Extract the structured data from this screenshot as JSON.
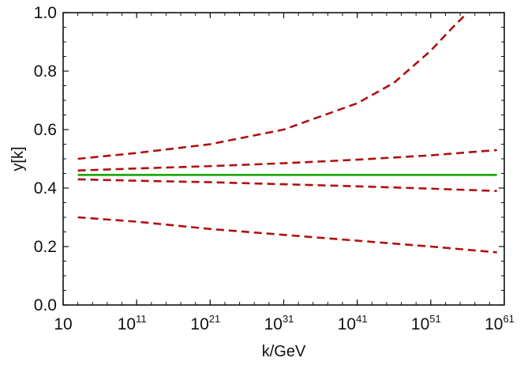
{
  "chart_data": {
    "type": "line",
    "title": "",
    "xlabel": "k/GeV",
    "ylabel": "y[k]",
    "x_scale": "log10",
    "xlim": [
      10,
      1e+61
    ],
    "ylim": [
      0,
      1
    ],
    "x_ticks": [
      {
        "value": 10,
        "base": "10",
        "exp": ""
      },
      {
        "value": 100000000000.0,
        "base": "10",
        "exp": "11"
      },
      {
        "value": 1e+21,
        "base": "10",
        "exp": "21"
      },
      {
        "value": 1e+31,
        "base": "10",
        "exp": "31"
      },
      {
        "value": 1e+41,
        "base": "10",
        "exp": "41"
      },
      {
        "value": 1e+51,
        "base": "10",
        "exp": "51"
      },
      {
        "value": 1e+61,
        "base": "10",
        "exp": "61"
      }
    ],
    "y_ticks": [
      "0.0",
      "0.2",
      "0.4",
      "0.6",
      "0.8",
      "1.0"
    ],
    "grid": false,
    "legend": "none",
    "series": [
      {
        "style": "dashed",
        "color": "#b01010",
        "x": [
          1000.0,
          100000000000.0,
          1e+21,
          1e+31,
          1e+41,
          1e+46,
          1e+51,
          1e+54,
          1e+56
        ],
        "y": [
          0.5,
          0.52,
          0.55,
          0.6,
          0.69,
          0.76,
          0.87,
          0.95,
          1.0
        ]
      },
      {
        "style": "dashed",
        "color": "#b01010",
        "x": [
          1000.0,
          100000000000.0,
          1e+21,
          1e+31,
          1e+41,
          1e+51,
          1e+60
        ],
        "y": [
          0.46,
          0.467,
          0.475,
          0.485,
          0.497,
          0.512,
          0.53
        ]
      },
      {
        "style": "solid",
        "color": "#22aa11",
        "x": [
          1000.0,
          1e+60
        ],
        "y": [
          0.445,
          0.445
        ]
      },
      {
        "style": "dashed",
        "color": "#b01010",
        "x": [
          1000.0,
          100000000000.0,
          1e+21,
          1e+31,
          1e+41,
          1e+51,
          1e+60
        ],
        "y": [
          0.43,
          0.425,
          0.42,
          0.413,
          0.406,
          0.398,
          0.39
        ]
      },
      {
        "style": "dashed",
        "color": "#b01010",
        "x": [
          1000.0,
          100000000000.0,
          1e+21,
          1e+31,
          1e+41,
          1e+51,
          1e+60
        ],
        "y": [
          0.3,
          0.285,
          0.26,
          0.24,
          0.22,
          0.2,
          0.18
        ]
      }
    ]
  }
}
